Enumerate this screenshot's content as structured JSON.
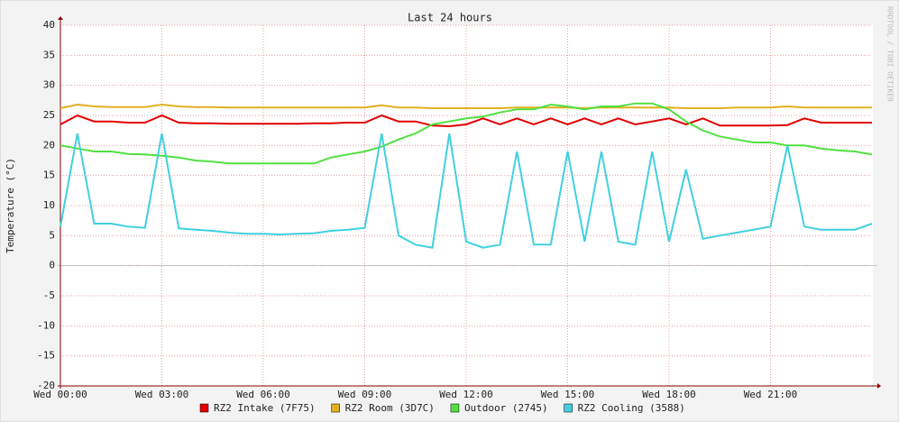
{
  "chart_data": {
    "type": "line",
    "title": "Last 24 hours",
    "y_label": "Temperature (°C)",
    "side_label": "RRDTOOL / TOBI OETIKER",
    "x": [
      0,
      0.5,
      1,
      1.5,
      2,
      2.5,
      3,
      3.5,
      4,
      4.5,
      5,
      5.5,
      6,
      6.5,
      7,
      7.5,
      8,
      8.5,
      9,
      9.5,
      10,
      10.5,
      11,
      11.5,
      12,
      12.5,
      13,
      13.5,
      14,
      14.5,
      15,
      15.5,
      16,
      16.5,
      17,
      17.5,
      18,
      18.5,
      19,
      19.5,
      20,
      20.5,
      21,
      21.5,
      22,
      22.5,
      23,
      23.5,
      24
    ],
    "xlim": [
      0,
      24
    ],
    "xticks": [
      {
        "value": 0,
        "label": "Wed 00:00"
      },
      {
        "value": 3,
        "label": "Wed 03:00"
      },
      {
        "value": 6,
        "label": "Wed 06:00"
      },
      {
        "value": 9,
        "label": "Wed 09:00"
      },
      {
        "value": 12,
        "label": "Wed 12:00"
      },
      {
        "value": 15,
        "label": "Wed 15:00"
      },
      {
        "value": 18,
        "label": "Wed 18:00"
      },
      {
        "value": 21,
        "label": "Wed 21:00"
      }
    ],
    "ylim": [
      -20,
      40
    ],
    "yticks": [
      -20,
      -15,
      -10,
      -5,
      0,
      5,
      10,
      15,
      20,
      25,
      30,
      35,
      40
    ],
    "grid": true,
    "series": [
      {
        "name": "RZ2 Intake (7F75)",
        "color": "#e00000",
        "values": [
          23.5,
          25,
          24,
          24,
          23.8,
          23.8,
          25,
          23.8,
          23.7,
          23.7,
          23.6,
          23.6,
          23.6,
          23.6,
          23.6,
          23.7,
          23.7,
          23.8,
          23.8,
          25,
          24,
          24,
          23.3,
          23.2,
          23.5,
          24.5,
          23.5,
          24.5,
          23.5,
          24.5,
          23.5,
          24.5,
          23.5,
          24.5,
          23.5,
          24,
          24.5,
          23.5,
          24.5,
          23.3,
          23.3,
          23.3,
          23.3,
          23.4,
          24.5,
          23.8,
          23.8,
          23.8,
          23.8
        ]
      },
      {
        "name": "RZ2 Room (3D7C)",
        "color": "#e0b020",
        "values": [
          26.2,
          26.8,
          26.5,
          26.4,
          26.4,
          26.4,
          26.8,
          26.5,
          26.4,
          26.4,
          26.3,
          26.3,
          26.3,
          26.3,
          26.3,
          26.3,
          26.3,
          26.3,
          26.3,
          26.7,
          26.3,
          26.3,
          26.2,
          26.2,
          26.2,
          26.2,
          26.2,
          26.3,
          26.3,
          26.3,
          26.3,
          26.2,
          26.3,
          26.3,
          26.3,
          26.3,
          26.3,
          26.2,
          26.2,
          26.2,
          26.3,
          26.3,
          26.3,
          26.5,
          26.3,
          26.3,
          26.3,
          26.3,
          26.3
        ]
      },
      {
        "name": "Outdoor (2745)",
        "color": "#50e040",
        "values": [
          20,
          19.5,
          19,
          19,
          18.6,
          18.5,
          18.3,
          18,
          17.5,
          17.3,
          17,
          17,
          17,
          17,
          17,
          17,
          18,
          18.5,
          19,
          19.8,
          21,
          22,
          23.5,
          24,
          24.5,
          24.8,
          25.5,
          26,
          26,
          26.8,
          26.5,
          26,
          26.5,
          26.5,
          27,
          27,
          26,
          24,
          22.5,
          21.5,
          21,
          20.5,
          20.5,
          20,
          20,
          19.5,
          19.2,
          19,
          18.5
        ]
      },
      {
        "name": "RZ2 Cooling (3588)",
        "color": "#40d0e0",
        "values": [
          6.5,
          22,
          7,
          7,
          6.5,
          6.3,
          22,
          6.2,
          6,
          5.8,
          5.5,
          5.3,
          5.3,
          5.2,
          5.3,
          5.4,
          5.8,
          6,
          6.3,
          22,
          5,
          3.5,
          3,
          22,
          4,
          3,
          3.5,
          19,
          3.5,
          3.5,
          19,
          4,
          19,
          4,
          3.5,
          19,
          4,
          16,
          4.5,
          5,
          5.5,
          6,
          6.5,
          20,
          6.5,
          6,
          6,
          6,
          7
        ]
      }
    ]
  }
}
